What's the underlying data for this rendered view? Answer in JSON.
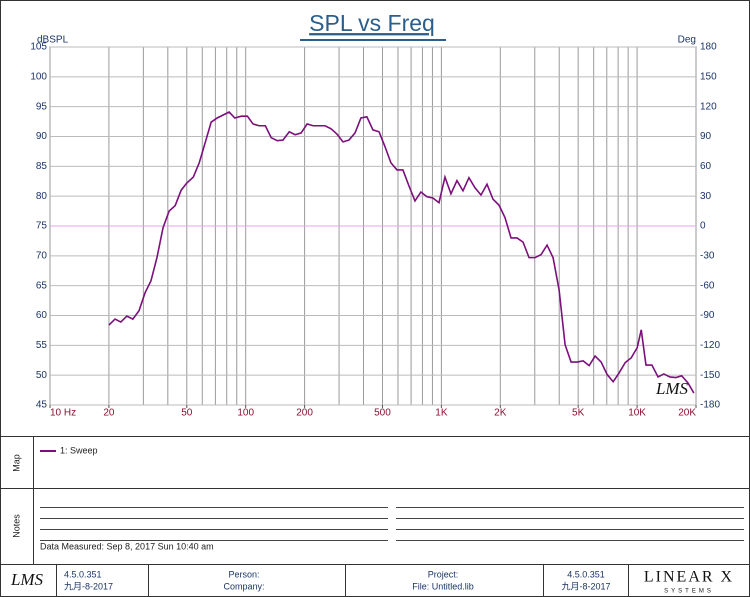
{
  "chart_data": {
    "type": "line",
    "title": "SPL vs Freq",
    "y_label": "dBSPL",
    "y2_label": "Deg",
    "watermark": "LMS",
    "x": [
      20,
      21.5,
      23,
      24.7,
      26.5,
      28.5,
      30.6,
      32.8,
      35.2,
      37.8,
      40.6,
      43.6,
      46.8,
      50,
      54,
      57.9,
      62,
      66.6,
      71.5,
      76.7,
      82.3,
      88,
      95,
      102,
      109,
      117,
      126,
      135,
      145,
      155,
      167,
      179,
      192,
      206,
      221,
      237,
      254,
      273,
      293,
      314,
      337,
      362,
      388,
      416,
      447,
      480,
      515,
      552,
      593,
      636,
      683,
      733,
      786,
      844,
      905,
      972,
      1043,
      1119,
      1201,
      1289,
      1383,
      1485,
      1593,
      1710,
      1835,
      1970,
      2114,
      2269,
      2435,
      2613,
      2805,
      3010,
      3230,
      3467,
      3721,
      3994,
      4286,
      4600,
      4937,
      5299,
      5687,
      6104,
      6551,
      7031,
      7546,
      8099,
      8692,
      9329,
      10012,
      10500,
      11100,
      11900,
      12800,
      13700,
      14700,
      15800,
      16900,
      18200,
      19500
    ],
    "series": [
      {
        "name": "1: Sweep",
        "color": "#7b0f7b",
        "values": [
          58.4,
          59.4,
          58.9,
          59.9,
          59.4,
          60.8,
          63.8,
          65.8,
          69.7,
          74.7,
          77.5,
          78.4,
          81,
          82.2,
          83.2,
          85.6,
          88.9,
          92.4,
          93.1,
          93.6,
          94.1,
          93.1,
          93.4,
          93.4,
          92.1,
          91.8,
          91.8,
          89.8,
          89.3,
          89.4,
          90.8,
          90.3,
          90.6,
          92.1,
          91.8,
          91.8,
          91.8,
          91.3,
          90.4,
          89.1,
          89.4,
          90.6,
          93.1,
          93.3,
          91.1,
          90.8,
          88.3,
          85.6,
          84.4,
          84.4,
          81.7,
          79.2,
          80.7,
          79.9,
          79.7,
          78.9,
          83.2,
          80.4,
          82.6,
          80.9,
          83.1,
          81.4,
          80.2,
          82.0,
          79.5,
          78.5,
          76.4,
          73.0,
          73.0,
          72.3,
          69.7,
          69.7,
          70.2,
          71.8,
          69.7,
          64.3,
          55.1,
          52.2,
          52.2,
          52.4,
          51.6,
          53.2,
          52.2,
          50.1,
          48.9,
          50.4,
          52.1,
          52.9,
          54.6,
          57.6,
          51.7,
          51.7,
          49.7,
          50.2,
          49.7,
          49.6,
          49.9,
          48.7,
          47.0
        ]
      }
    ],
    "xscale": "log",
    "xlim": [
      10,
      20000
    ],
    "xticks": [
      {
        "value": 10,
        "label": "10 Hz"
      },
      20,
      50,
      100,
      200,
      500,
      {
        "value": 1000,
        "label": "1K"
      },
      {
        "value": 2000,
        "label": "2K"
      },
      {
        "value": 5000,
        "label": "5K"
      },
      {
        "value": 10000,
        "label": "10K"
      },
      {
        "value": 20000,
        "label": "20K"
      }
    ],
    "xgrid": [
      10,
      20,
      30,
      40,
      50,
      60,
      70,
      80,
      90,
      100,
      200,
      300,
      400,
      500,
      600,
      700,
      800,
      900,
      1000,
      2000,
      3000,
      4000,
      5000,
      6000,
      7000,
      8000,
      9000,
      10000,
      20000
    ],
    "ylim": [
      45,
      105
    ],
    "yticks": [
      45,
      50,
      55,
      60,
      65,
      70,
      75,
      80,
      85,
      90,
      95,
      100,
      105
    ],
    "y2lim": [
      -180,
      180
    ],
    "y2ticks": [
      -180,
      -150,
      -120,
      -90,
      -60,
      -30,
      0,
      30,
      60,
      90,
      120,
      150,
      180
    ],
    "reference_line": {
      "axis": "y2",
      "value": 0,
      "color": "#e6a6e6"
    },
    "grid": true
  },
  "panels": {
    "map_label": "Map",
    "notes_label": "Notes",
    "data_measured": "Data Measured: Sep 8, 2017 Sun 10:40 am"
  },
  "footer": {
    "logo": "LMS",
    "version_left": "4.5.0.351",
    "date_left": "九月-8-2017",
    "person": "Person:",
    "company": "Company:",
    "project": "Project:",
    "file": "File: Untitled.lib",
    "version_right": "4.5.0.351",
    "date_right": "九月-8-2017",
    "brand": "LINEAR X",
    "brand_sub": "SYSTEMS"
  }
}
